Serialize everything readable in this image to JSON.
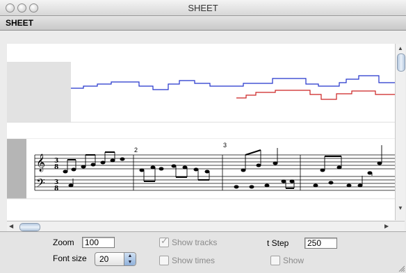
{
  "window": {
    "title": "SHEET"
  },
  "header": {
    "label": "SHEET"
  },
  "score": {
    "measure_numbers": [
      "2",
      "3"
    ]
  },
  "controls": {
    "zoom_label": "Zoom",
    "zoom_value": "100",
    "font_size_label": "Font size",
    "font_size_value": "20",
    "show_tracks_label": "Show tracks",
    "show_tracks_checked": true,
    "show_times_label": "Show times",
    "show_times_checked": false,
    "tstep_label": "t Step",
    "tstep_value": "250",
    "show_label": "Show",
    "show_checked": false
  },
  "icons": {
    "close": "window-close-icon",
    "minimize": "window-minimize-icon",
    "zoom": "window-zoom-icon"
  }
}
